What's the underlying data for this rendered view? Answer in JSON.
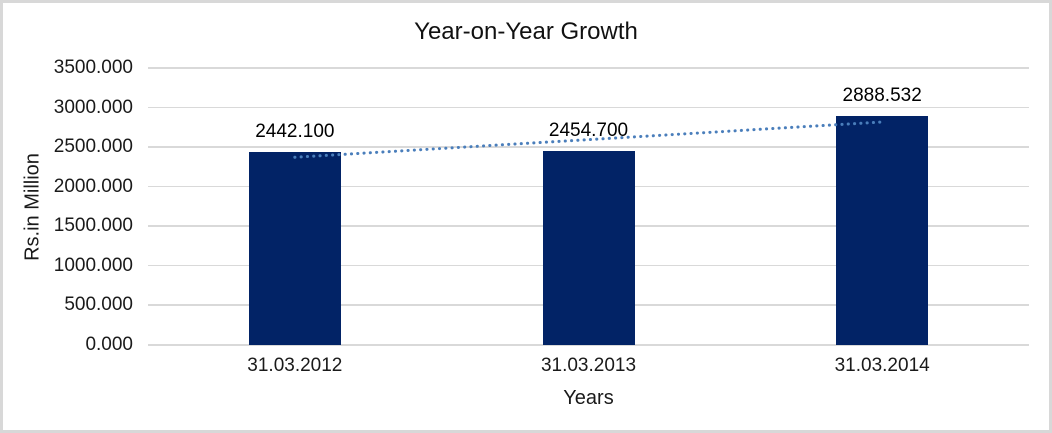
{
  "chart_data": {
    "type": "bar",
    "title": "Year-on-Year Growth",
    "xlabel": "Years",
    "ylabel": "Rs.in Million",
    "categories": [
      "31.03.2012",
      "31.03.2013",
      "31.03.2014"
    ],
    "values": [
      2442.1,
      2454.7,
      2888.532
    ],
    "value_labels": [
      "2442.100",
      "2454.700",
      "2888.532"
    ],
    "yticks": [
      0,
      500,
      1000,
      1500,
      2000,
      2500,
      3000,
      3500
    ],
    "ytick_labels": [
      "0.000",
      "500.000",
      "1000.000",
      "1500.000",
      "2000.000",
      "2500.000",
      "3000.000",
      "3500.000"
    ],
    "ylim": [
      0,
      3500
    ],
    "grid": true,
    "legend": "none",
    "colors": {
      "bar": "#022366",
      "trendline": "#4a7ebb",
      "gridline": "#d9d9d9",
      "text": "#000000",
      "frame_border": "#d8d8d8"
    },
    "trendline": {
      "type": "linear",
      "style": "dotted",
      "start_value": 2372,
      "end_value": 2818
    }
  }
}
